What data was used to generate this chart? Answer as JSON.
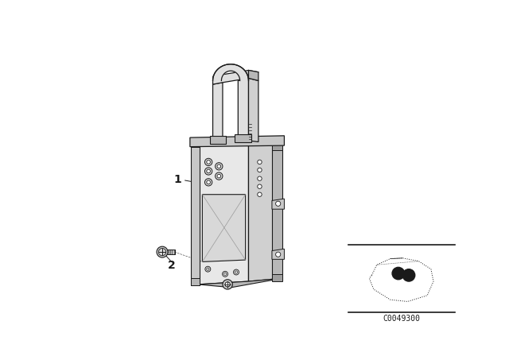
{
  "bg_color": "#ffffff",
  "line_color": "#1a1a1a",
  "fill_main": "#e8e8e8",
  "fill_side": "#d0d0d0",
  "fill_dark": "#b8b8b8",
  "fill_hoop": "#e0e0e0",
  "fill_bracket": "#c8c8c8",
  "part_number": "C0049300",
  "label1": "1",
  "label2": "2",
  "fig_width": 6.4,
  "fig_height": 4.48,
  "dpi": 100
}
